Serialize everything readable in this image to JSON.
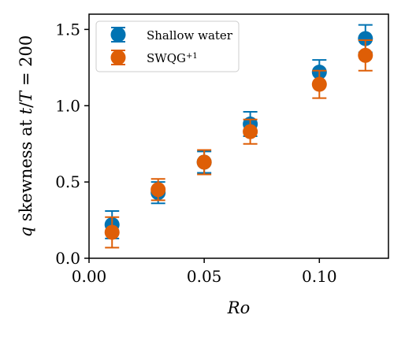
{
  "chart_data": {
    "type": "scatter",
    "xlabel_parts": {
      "italic": "Ro"
    },
    "ylabel_parts": {
      "q": "q",
      "mid": " skewness at ",
      "t": "t",
      "slash": "/",
      "T": "T",
      "eq": " = 200"
    },
    "xlim": [
      0.0,
      0.13
    ],
    "ylim": [
      0.0,
      1.6
    ],
    "x_ticks": [
      0.0,
      0.05,
      0.1
    ],
    "x_tick_labels": [
      "0.00",
      "0.05",
      "0.10"
    ],
    "y_ticks": [
      0.0,
      0.5,
      1.0,
      1.5
    ],
    "y_tick_labels": [
      "0.0",
      "0.5",
      "1.0",
      "1.5"
    ],
    "grid": false,
    "legend_position": "top-left",
    "legend_parts": {
      "sw": "Shallow water",
      "swqg_base": "SWQG",
      "swqg_sup": "+1"
    },
    "series": [
      {
        "key": "sw",
        "color": "#0173b2",
        "points": [
          {
            "x": 0.01,
            "y": 0.22,
            "err": 0.09
          },
          {
            "x": 0.03,
            "y": 0.43,
            "err": 0.07
          },
          {
            "x": 0.05,
            "y": 0.63,
            "err": 0.07
          },
          {
            "x": 0.07,
            "y": 0.88,
            "err": 0.08
          },
          {
            "x": 0.1,
            "y": 1.22,
            "err": 0.08
          },
          {
            "x": 0.12,
            "y": 1.44,
            "err": 0.09
          }
        ]
      },
      {
        "key": "swqg",
        "color": "#de5e06",
        "points": [
          {
            "x": 0.01,
            "y": 0.17,
            "err": 0.1
          },
          {
            "x": 0.03,
            "y": 0.45,
            "err": 0.07
          },
          {
            "x": 0.05,
            "y": 0.63,
            "err": 0.08
          },
          {
            "x": 0.07,
            "y": 0.83,
            "err": 0.08
          },
          {
            "x": 0.1,
            "y": 1.14,
            "err": 0.09
          },
          {
            "x": 0.12,
            "y": 1.33,
            "err": 0.1
          }
        ]
      }
    ]
  }
}
